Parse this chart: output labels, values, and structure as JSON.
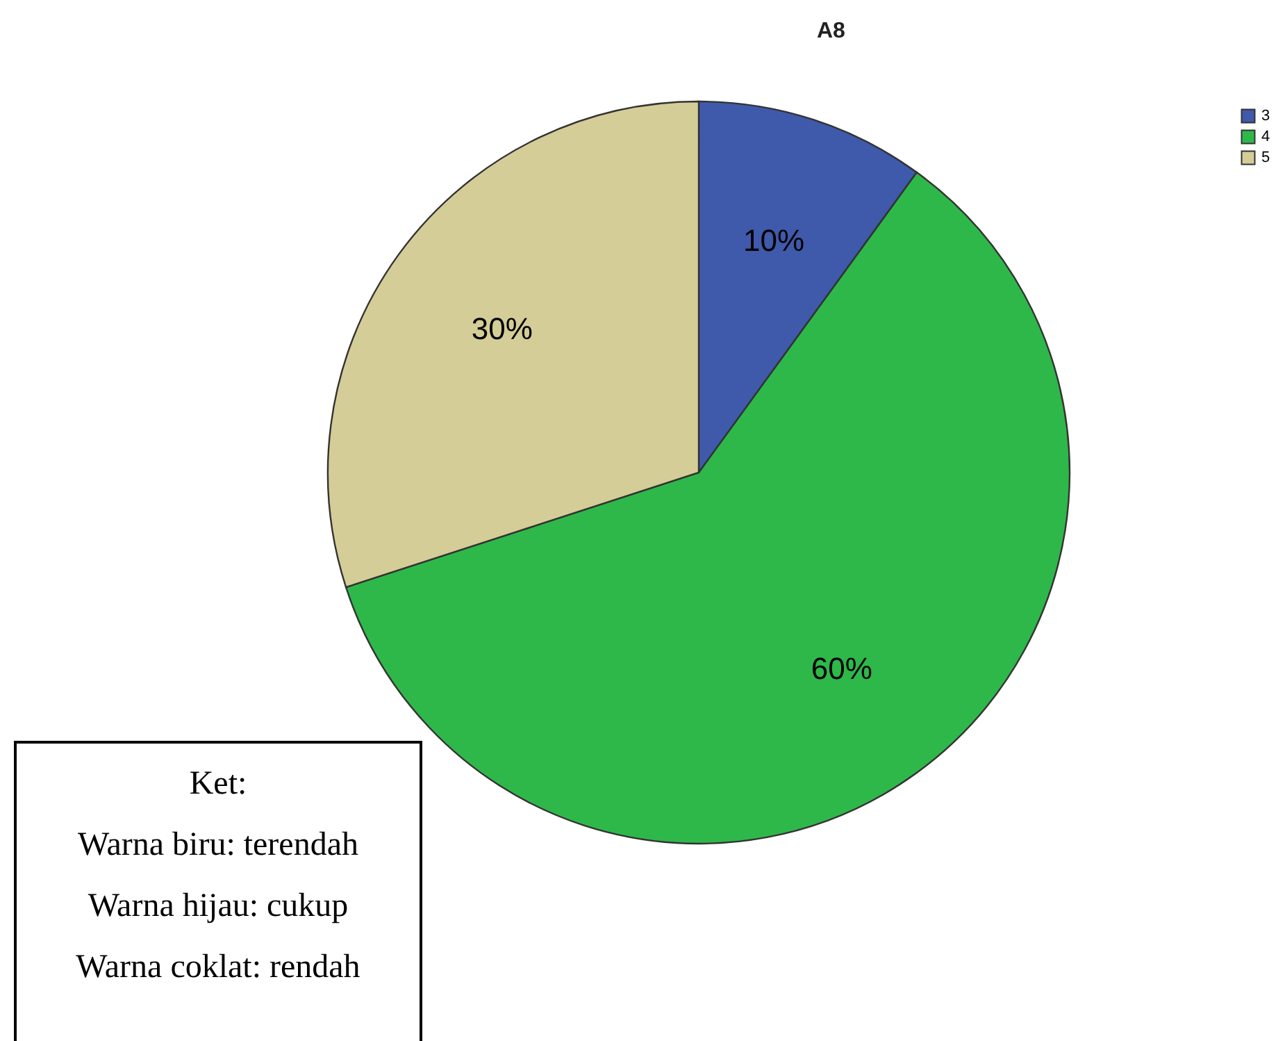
{
  "chart_data": {
    "type": "pie",
    "title": "A8",
    "categories": [
      "3",
      "4",
      "5"
    ],
    "values": [
      10,
      60,
      30
    ],
    "value_labels": [
      "10%",
      "60%",
      "30%"
    ],
    "colors": [
      "#3f59ab",
      "#2eb84a",
      "#d4cd98"
    ],
    "legend": "top right",
    "annotations": [
      "Ket:",
      "Warna biru: terendah",
      "Warna hijau: cukup",
      "Warna coklat: rendah"
    ]
  }
}
